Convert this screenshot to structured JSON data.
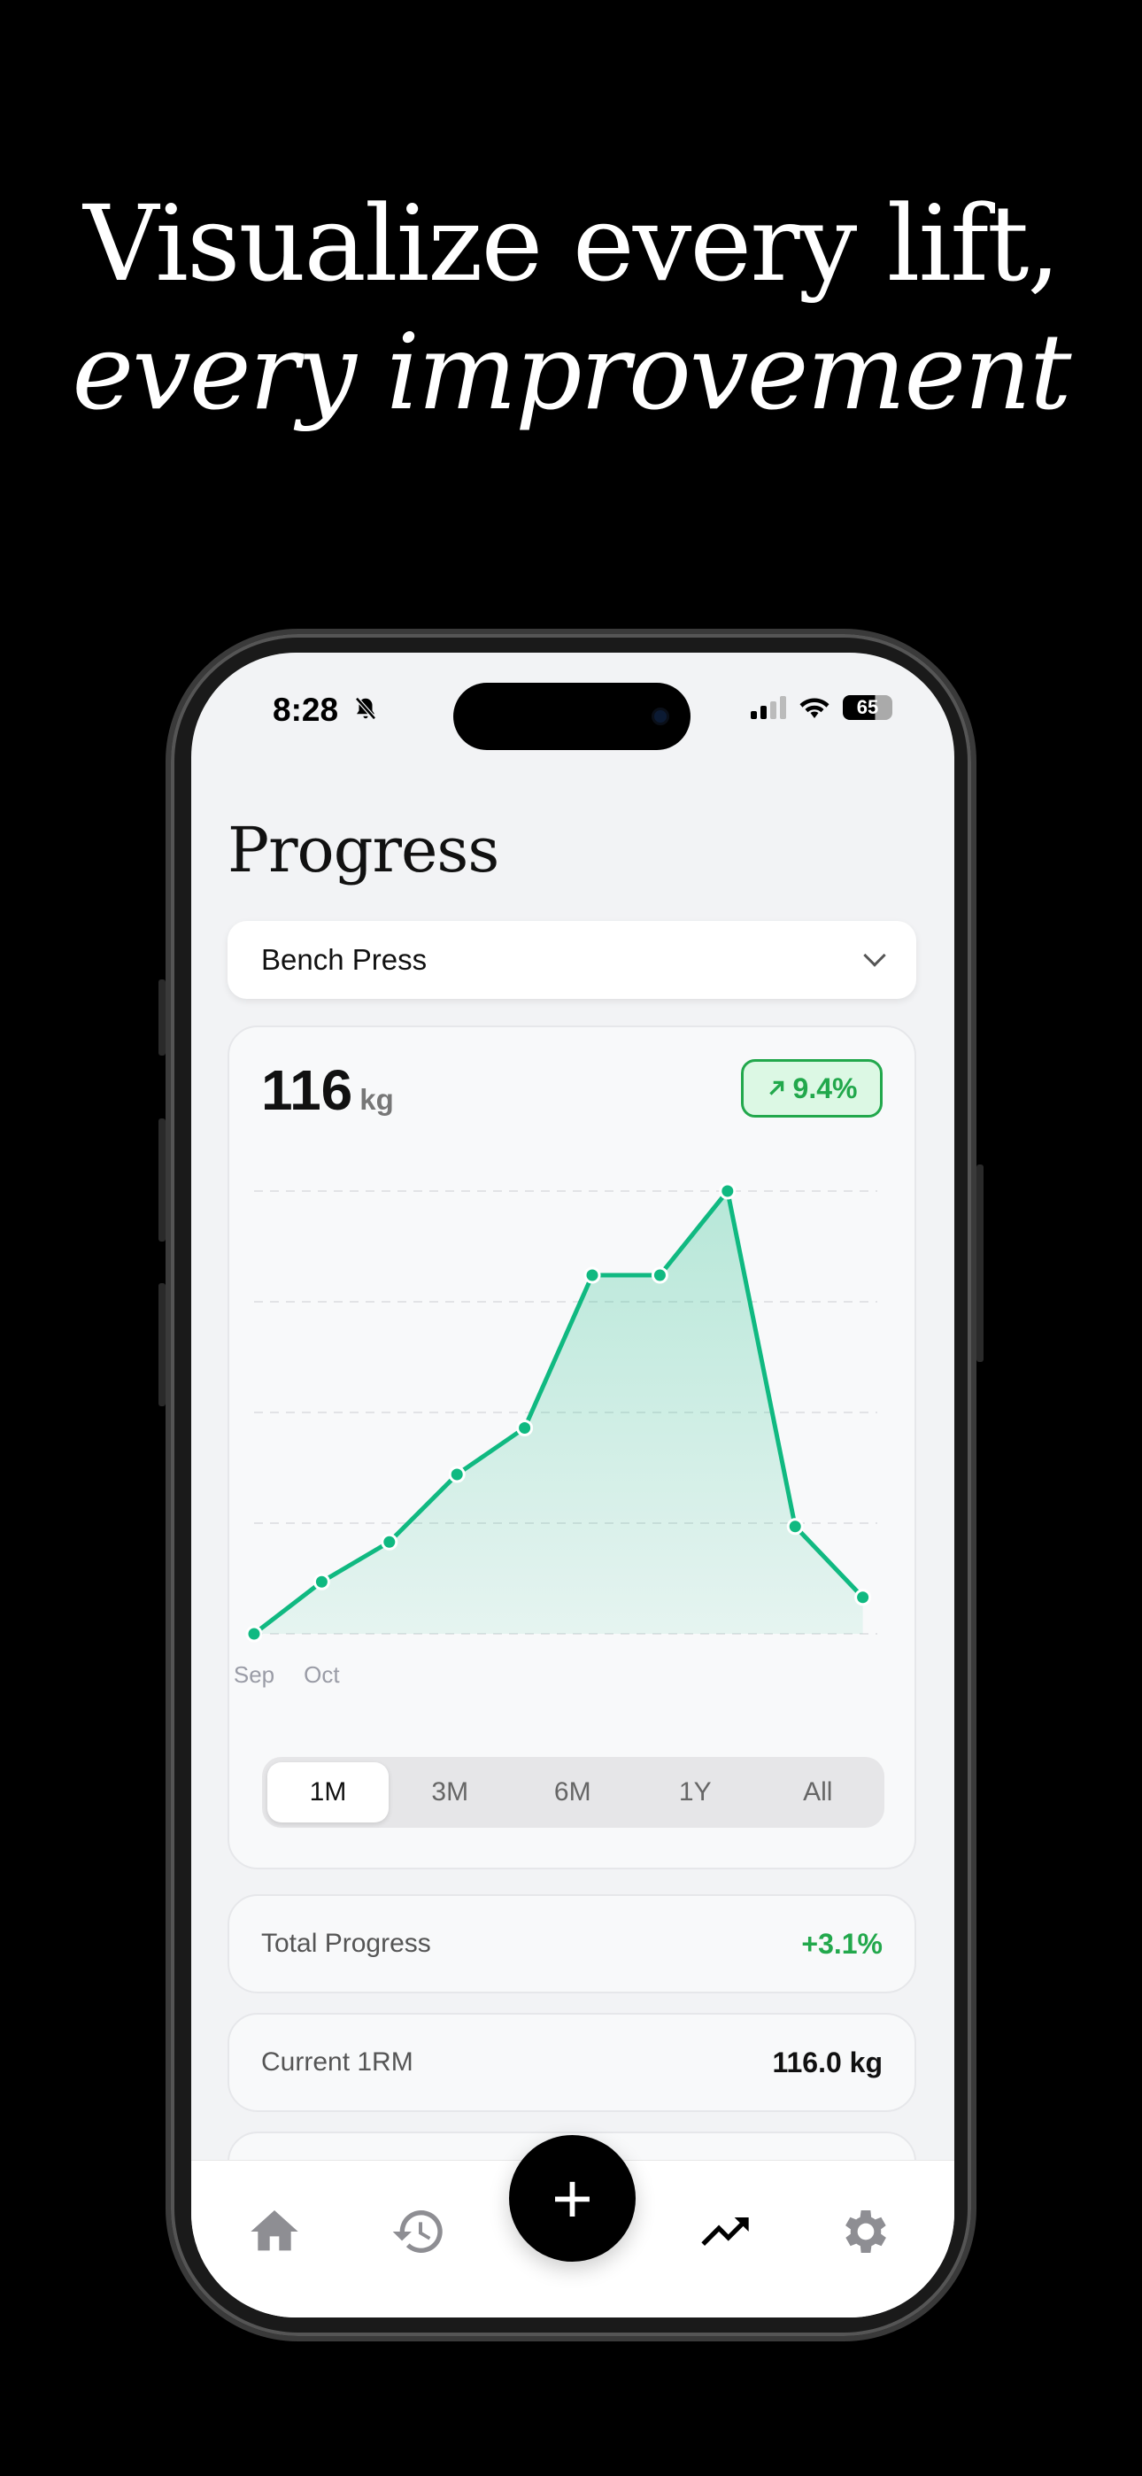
{
  "headline": {
    "line1": "Visualize every lift,",
    "line2": "every improvement"
  },
  "status_bar": {
    "time": "8:28",
    "battery": "65",
    "icons": [
      "bell-slash-icon",
      "signal-icon",
      "wifi-icon",
      "battery-icon"
    ]
  },
  "page": {
    "title": "Progress"
  },
  "exercise_select": {
    "value": "Bench Press",
    "icon": "chevron-down-icon"
  },
  "summary": {
    "value": "116",
    "unit": "kg",
    "change": "9.4%",
    "change_icon": "arrow-up-right-icon",
    "accent": "#22a84c"
  },
  "chart_data": {
    "type": "area",
    "x_tick_labels": [
      "Sep",
      "Oct"
    ],
    "values": [
      0,
      0.47,
      0.83,
      1.44,
      1.86,
      3.24,
      3.24,
      4.0,
      0.97,
      0.33
    ],
    "ylim": [
      0,
      4
    ],
    "grid": true,
    "line_color": "#10b981",
    "fill_color": "#10b981"
  },
  "ranges": {
    "selected": "1M",
    "options": [
      "1M",
      "3M",
      "6M",
      "1Y",
      "All"
    ]
  },
  "stats": [
    {
      "label": "Total Progress",
      "value": "+3.1%",
      "positive": true
    },
    {
      "label": "Current 1RM",
      "value": "116.0 kg",
      "positive": false
    }
  ],
  "nav": {
    "items": [
      "home-icon",
      "history-icon",
      "add-icon",
      "progress-icon",
      "settings-icon"
    ],
    "active": "progress-icon",
    "fab_label": "+"
  }
}
